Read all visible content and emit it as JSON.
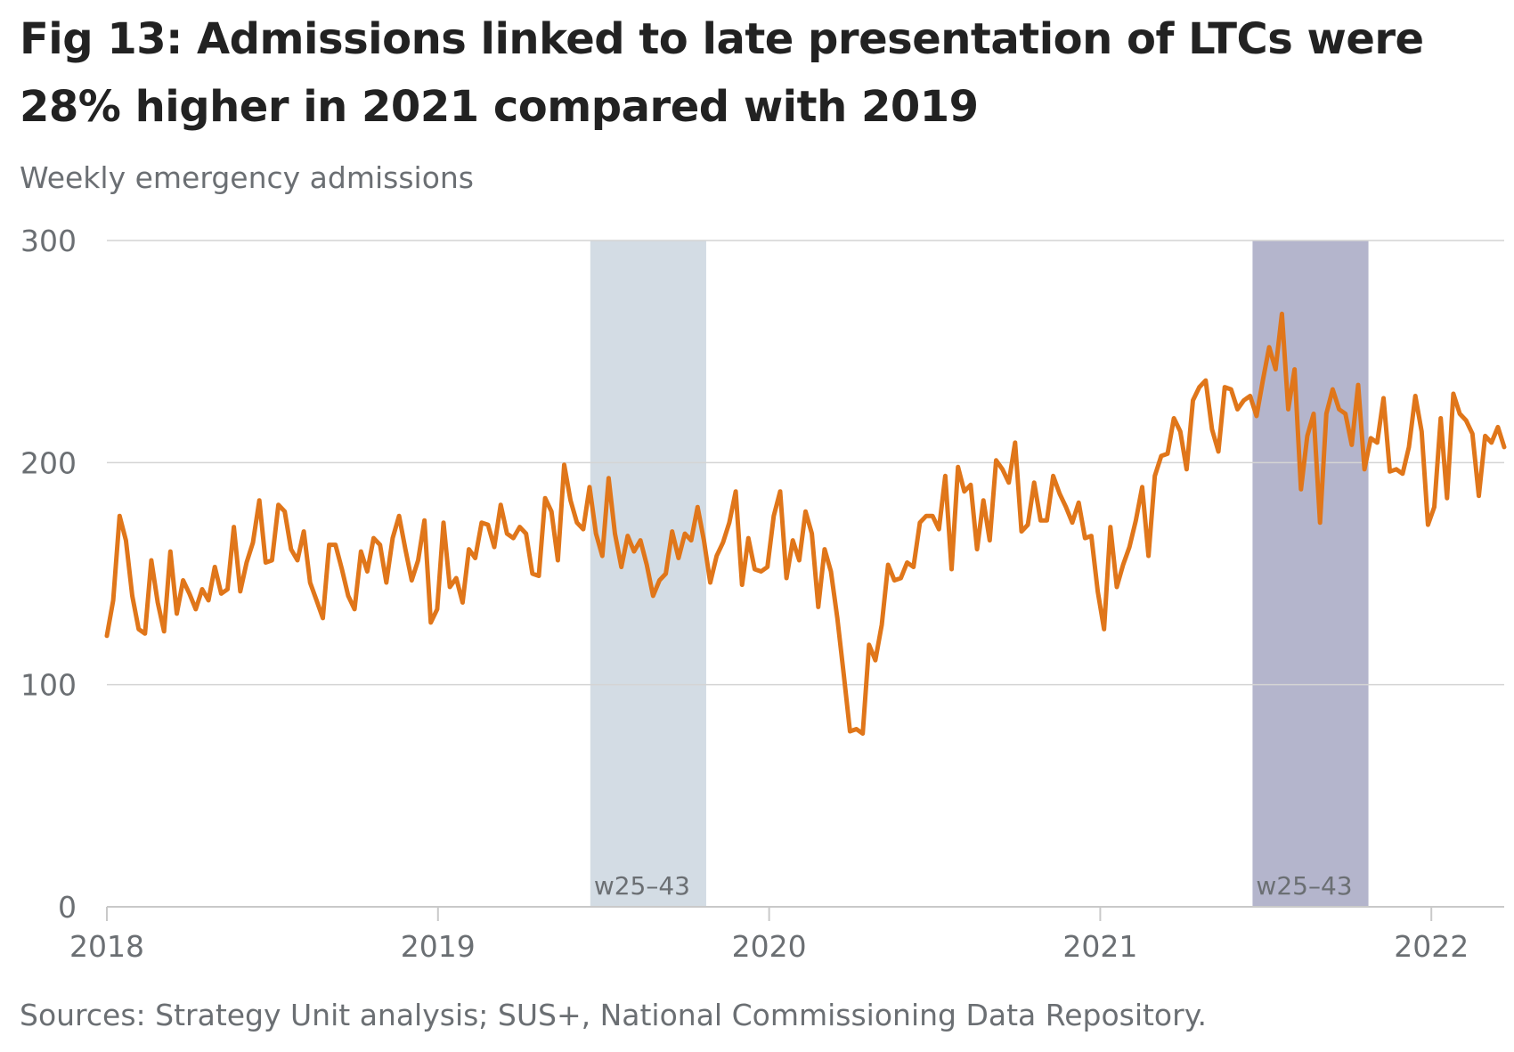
{
  "title": "Fig 13: Admissions linked to late presentation of LTCs were 28% higher in 2021 compared with 2019",
  "subtitle": "Weekly emergency admissions",
  "source": "Sources: Strategy Unit analysis; SUS+, National Commissioning Data Repository.",
  "colors": {
    "line": "#e0761a",
    "band_2019": "#d3dce4",
    "band_2021": "#b4b5cc",
    "grid": "#d4d4d4",
    "axis": "#c9c9c9",
    "text": "#6b6f73"
  },
  "chart_data": {
    "type": "line",
    "title": "Fig 13: Admissions linked to late presentation of LTCs were 28% higher in 2021 compared with 2019",
    "ylabel": "Weekly emergency admissions",
    "xlabel": "",
    "x_start": "2018",
    "x_step": "1 week",
    "xlim": [
      2018,
      2022.22
    ],
    "ylim": [
      0,
      300
    ],
    "yticks": [
      0,
      100,
      200,
      300
    ],
    "xticks": [
      {
        "label": "2018",
        "value": 2018
      },
      {
        "label": "2019",
        "value": 2019
      },
      {
        "label": "2020",
        "value": 2020
      },
      {
        "label": "2021",
        "value": 2021
      },
      {
        "label": "2022",
        "value": 2022
      }
    ],
    "grid": true,
    "highlight_bands": [
      {
        "label": "w25–43",
        "start": 2019.46,
        "end": 2019.81,
        "color": "#d3dce4"
      },
      {
        "label": "w25–43",
        "start": 2021.46,
        "end": 2021.81,
        "color": "#b4b5cc"
      }
    ],
    "series": [
      {
        "values": [
          122,
          138,
          176,
          165,
          140,
          125,
          123,
          156,
          137,
          124,
          160,
          132,
          147,
          141,
          134,
          143,
          138,
          153,
          141,
          143,
          171,
          142,
          155,
          164,
          183,
          155,
          156,
          181,
          178,
          161,
          156,
          169,
          146,
          138,
          130,
          163,
          163,
          152,
          140,
          134,
          160,
          151,
          166,
          163,
          146,
          166,
          176,
          161,
          147,
          156,
          174,
          128,
          134,
          173,
          144,
          148,
          137,
          161,
          157,
          173,
          172,
          162,
          181,
          168,
          166,
          171,
          168,
          150,
          149,
          184,
          178,
          156,
          199,
          183,
          173,
          170,
          189,
          168,
          158,
          193,
          168,
          153,
          167,
          160,
          165,
          154,
          140,
          147,
          150,
          169,
          157,
          168,
          165,
          180,
          165,
          146,
          158,
          164,
          173,
          187,
          145,
          166,
          152,
          151,
          153,
          176,
          187,
          148,
          165,
          156,
          178,
          168,
          135,
          161,
          151,
          130,
          105,
          79,
          80,
          78,
          118,
          111,
          127,
          154,
          147,
          148,
          155,
          153,
          173,
          176,
          176,
          170,
          194,
          152,
          198,
          187,
          190,
          161,
          183,
          165,
          201,
          197,
          191,
          209,
          169,
          172,
          191,
          174,
          174,
          194,
          186,
          180,
          173,
          182,
          166,
          167,
          142,
          125,
          171,
          144,
          154,
          162,
          174,
          189,
          158,
          194,
          203,
          204,
          220,
          214,
          197,
          228,
          234,
          237,
          215,
          205,
          234,
          233,
          224,
          228,
          230,
          221,
          237,
          252,
          242,
          267,
          224,
          242,
          188,
          212,
          222,
          173,
          222,
          233,
          224,
          222,
          208,
          235,
          197,
          211,
          209,
          229,
          196,
          197,
          195,
          207,
          230,
          214,
          172,
          180,
          220,
          184,
          231,
          222,
          219,
          213,
          185,
          212,
          209,
          216,
          207
        ]
      }
    ]
  }
}
